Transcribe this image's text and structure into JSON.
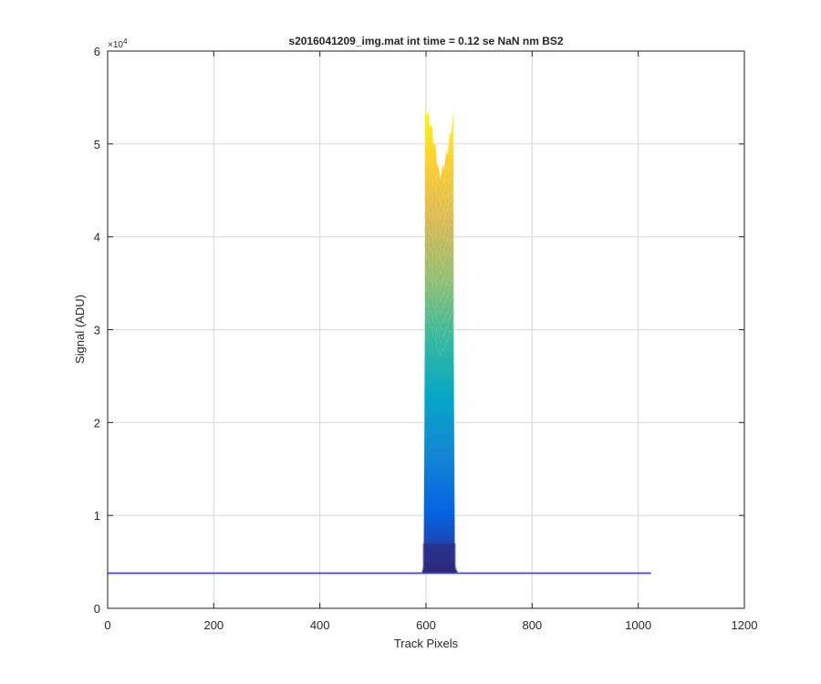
{
  "chart_data": {
    "type": "line",
    "title": "s2016041209_img.mat int time = 0.12 se  NaN nm BS2",
    "xlabel": "Track Pixels",
    "ylabel": "Signal (ADU)",
    "xlim": [
      0,
      1200
    ],
    "ylim": [
      0,
      60000
    ],
    "xticks": [
      0,
      200,
      400,
      600,
      800,
      1000,
      1200
    ],
    "xtick_labels": [
      "0",
      "200",
      "400",
      "600",
      "800",
      "1000",
      "1200"
    ],
    "yticks": [
      0,
      10000,
      20000,
      30000,
      40000,
      50000,
      60000
    ],
    "ytick_labels": [
      "0",
      "1",
      "2",
      "3",
      "4",
      "5",
      "6"
    ],
    "y_exponent_label": "×10",
    "y_exponent_power": "4",
    "grid": true,
    "colormap": "parula",
    "colors": [
      "#352a87",
      "#0363e1",
      "#1485d4",
      "#06a7c6",
      "#38b99e",
      "#92bf73",
      "#d9ba56",
      "#fcce2e",
      "#f9fb0e"
    ],
    "description_series": "stack of many overlapping traces with a rectangular peak between ~595 and ~655 px",
    "x_range": [
      0,
      1024
    ],
    "baseline": 3800,
    "peak_x": [
      595,
      655
    ],
    "peak_top_left": 53500,
    "peak_dip": 46500,
    "peak_top_right": 53000
  }
}
